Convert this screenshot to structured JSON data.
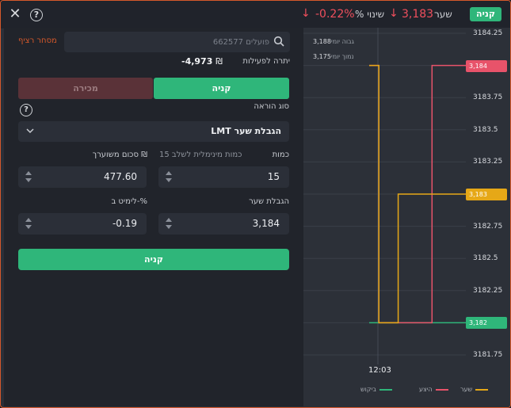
{
  "topbar": {
    "change_value": "-0.22%",
    "change_label": "% שינוי",
    "price_value": "3,183",
    "price_label": "שער",
    "buy_label": "קניה",
    "down_color": "#f04f5d",
    "buy_color": "#2fb67a"
  },
  "panel": {
    "search_placeholder": "פועלים 662577",
    "continuous_trading": "מסחר רציף",
    "balance_label": "יתרה לפעילות",
    "balance_value": "-4,973",
    "balance_currency": "₪",
    "tab_buy": "קניה",
    "tab_sell": "מכירה",
    "order_type_label": "סוג הוראה",
    "order_type_value": "LMT הגבלת שער",
    "quantity_label": "כמות",
    "quantity_value": "15",
    "min_qty_label": "כמות מינימלית לשלב 15",
    "est_amount_label": "סכום משוערך ₪",
    "est_amount_value": "477.60",
    "limit_price_label": "הגבלת שער",
    "limit_price_value": "3,184",
    "limit_pct_label": "לימיט ב-%",
    "limit_pct_value": "-0.19",
    "submit_label": "קניה"
  },
  "chart_data": {
    "type": "line",
    "y_ticks": [
      "3184.25",
      "3184",
      "3183.75",
      "3183.5",
      "3183.25",
      "3183",
      "3182.75",
      "3182.5",
      "3182.25",
      "3182",
      "3181.75"
    ],
    "ylim": [
      3181.75,
      3184.25
    ],
    "x_ticks": [
      "12:03"
    ],
    "day_high_label": "גבוה יומי",
    "day_high_value": "3,188",
    "day_low_label": "נמוך יומי",
    "day_low_value": "3,175",
    "series": [
      {
        "name": "שער",
        "color": "#e6a817",
        "last": "3,183",
        "points": [
          [
            0,
            3184
          ],
          [
            0.1,
            3184
          ],
          [
            0.1,
            3182
          ],
          [
            0.3,
            3182
          ],
          [
            0.3,
            3183
          ],
          [
            1,
            3183
          ]
        ]
      },
      {
        "name": "היצע",
        "color": "#e8536a",
        "last": "3,184",
        "points": [
          [
            0,
            3184
          ],
          [
            0.1,
            3184
          ],
          [
            0.1,
            3182
          ],
          [
            0.65,
            3182
          ],
          [
            0.65,
            3184
          ],
          [
            1,
            3184
          ]
        ]
      },
      {
        "name": "ביקוש",
        "color": "#2fb67a",
        "last": "3,182",
        "points": [
          [
            0,
            3182
          ],
          [
            1,
            3182
          ]
        ]
      }
    ]
  }
}
